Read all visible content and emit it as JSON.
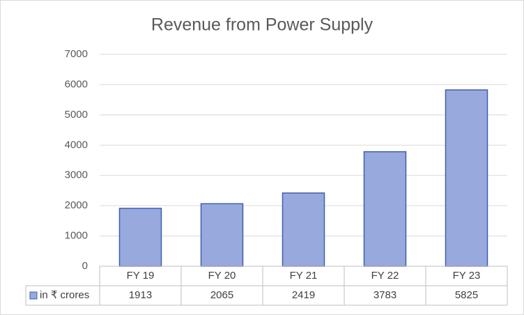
{
  "chart_data": {
    "type": "bar",
    "title": "Revenue from Power Supply",
    "categories": [
      "FY 19",
      "FY 20",
      "FY 21",
      "FY 22",
      "FY 23"
    ],
    "series": [
      {
        "name": "in ₹ crores",
        "color": "#98a9de",
        "values": [
          1913,
          2065,
          2419,
          3783,
          5825
        ]
      }
    ],
    "ylim": [
      0,
      7000
    ],
    "yticks": [
      0,
      1000,
      2000,
      3000,
      4000,
      5000,
      6000,
      7000
    ],
    "grid": true,
    "data_table": true
  }
}
